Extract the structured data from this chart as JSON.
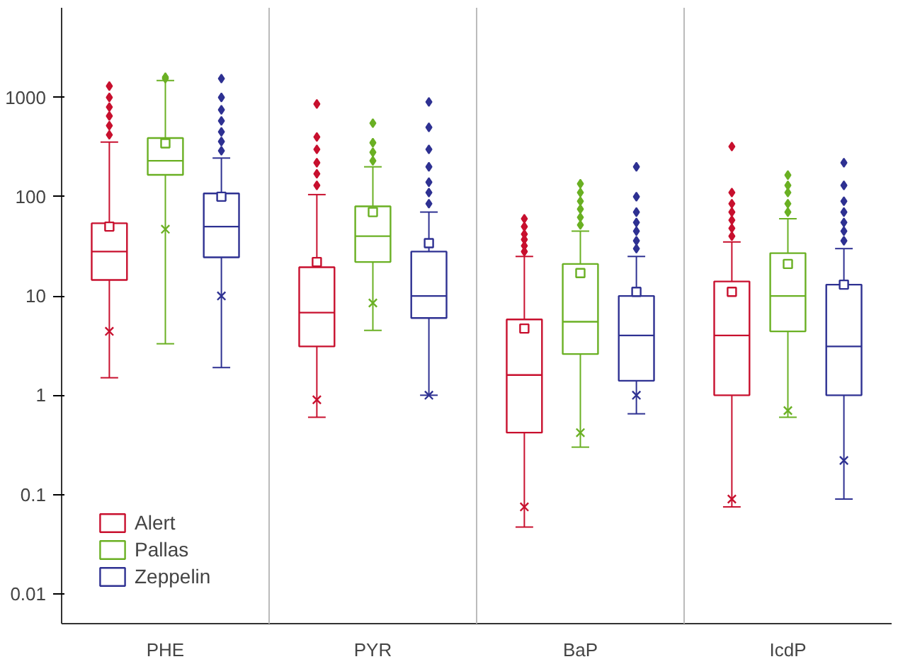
{
  "chart_data": {
    "type": "box",
    "categories": [
      "PHE",
      "PYR",
      "BaP",
      "IcdP"
    ],
    "log": "y",
    "ylim": [
      0.005,
      8000
    ],
    "yticks": [
      0.01,
      0.1,
      1,
      10,
      100,
      1000
    ],
    "grid": "x",
    "legend": "bottom left",
    "series": [
      {
        "name": "Alert",
        "color": "#c8102e",
        "boxes": [
          {
            "low": 1.5,
            "q1": 14.5,
            "median": 28,
            "q3": 54,
            "high": 355,
            "mean": 50,
            "outliers": [
              420,
              520,
              650,
              800,
              1000,
              1300
            ]
          },
          {
            "low": 0.6,
            "q1": 3.1,
            "median": 6.8,
            "q3": 19.5,
            "high": 105,
            "mean": 22,
            "outliers": [
              130,
              170,
              220,
              300,
              400,
              860
            ]
          },
          {
            "low": 0.047,
            "q1": 0.42,
            "median": 1.6,
            "q3": 5.8,
            "high": 25,
            "mean": 4.7,
            "outliers": [
              28,
              32,
              37,
              42,
              50,
              60
            ]
          },
          {
            "low": 0.075,
            "q1": 1,
            "median": 4,
            "q3": 14,
            "high": 35,
            "mean": 11,
            "outliers": [
              40,
              48,
              58,
              70,
              85,
              110,
              320
            ]
          }
        ]
      },
      {
        "name": "Pallas",
        "color": "#6ab023",
        "boxes": [
          {
            "low": 3.3,
            "q1": 166,
            "median": 230,
            "q3": 390,
            "high": 1480,
            "mean": 345,
            "outliers": [
              1550,
              1600
            ]
          },
          {
            "low": 4.5,
            "q1": 22,
            "median": 40,
            "q3": 80,
            "high": 200,
            "mean": 70,
            "outliers": [
              230,
              280,
              350,
              550
            ]
          },
          {
            "low": 0.3,
            "q1": 2.6,
            "median": 5.5,
            "q3": 21,
            "high": 45,
            "mean": 17,
            "outliers": [
              52,
              62,
              75,
              90,
              110,
              135
            ]
          },
          {
            "low": 0.6,
            "q1": 4.4,
            "median": 10,
            "q3": 27,
            "high": 60,
            "mean": 21,
            "outliers": [
              70,
              85,
              110,
              130,
              165
            ]
          }
        ]
      },
      {
        "name": "Zeppelin",
        "color": "#2e3192",
        "boxes": [
          {
            "low": 1.9,
            "q1": 24.5,
            "median": 50,
            "q3": 108,
            "high": 245,
            "mean": 100,
            "outliers": [
              290,
              360,
              450,
              580,
              750,
              1000,
              1550
            ]
          },
          {
            "low": 1,
            "q1": 6,
            "median": 10,
            "q3": 28,
            "high": 70,
            "mean": 34,
            "outliers": [
              85,
              110,
              140,
              200,
              300,
              500,
              900
            ]
          },
          {
            "low": 0.65,
            "q1": 1.4,
            "median": 4,
            "q3": 10,
            "high": 25,
            "mean": 11,
            "outliers": [
              30,
              36,
              45,
              55,
              70,
              100,
              200
            ]
          },
          {
            "low": 0.09,
            "q1": 1,
            "median": 3.1,
            "q3": 13,
            "high": 30,
            "mean": 13,
            "outliers": [
              36,
              45,
              55,
              70,
              90,
              130,
              220
            ]
          }
        ]
      },
      {
        "type": "scatter",
        "marker": "cross",
        "color": "#c8102e",
        "x": [
          "PHE",
          "PYR",
          "BaP",
          "IcdP"
        ],
        "values": [
          4.4,
          0.9,
          0.075,
          0.09
        ]
      },
      {
        "type": "scatter",
        "marker": "cross",
        "color": "#6ab023",
        "x": [
          "PHE",
          "PYR",
          "BaP",
          "IcdP"
        ],
        "values": [
          47,
          8.5,
          0.42,
          0.7
        ]
      },
      {
        "type": "scatter",
        "marker": "cross",
        "color": "#2e3192",
        "x": [
          "PHE",
          "PYR",
          "BaP",
          "IcdP"
        ],
        "values": [
          10,
          1,
          1,
          0.22
        ]
      }
    ]
  }
}
